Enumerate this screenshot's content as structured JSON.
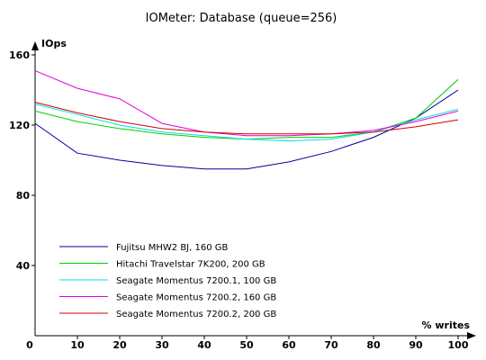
{
  "chart_data": {
    "type": "line",
    "title": "IOMeter: Database (queue=256)",
    "ylabel": "IOps",
    "xlabel": "% writes",
    "x": [
      0,
      10,
      20,
      30,
      40,
      50,
      60,
      70,
      80,
      90,
      100
    ],
    "xlim": [
      0,
      100
    ],
    "ylim": [
      0,
      160
    ],
    "xticks": [
      "0",
      "10",
      "20",
      "30",
      "40",
      "50",
      "60",
      "70",
      "80",
      "90",
      "100"
    ],
    "yticks": [
      "40",
      "80",
      "120",
      "160"
    ],
    "grid": false,
    "legend_position": "bottom-left",
    "series": [
      {
        "name": "Fujitsu MHW2 BJ, 160 GB",
        "color": "#0000a0",
        "values": [
          121,
          104,
          100,
          97,
          95,
          95,
          99,
          105,
          113,
          124,
          140
        ]
      },
      {
        "name": "Hitachi Travelstar 7K200, 200 GB",
        "color": "#00d000",
        "values": [
          128,
          122,
          118,
          115,
          113,
          112,
          113,
          113,
          116,
          124,
          146
        ]
      },
      {
        "name": "Seagate Momentus 7200.1, 100 GB",
        "color": "#00e0e0",
        "values": [
          132,
          126,
          120,
          116,
          114,
          112,
          111,
          112,
          116,
          123,
          129
        ]
      },
      {
        "name": "Seagate Momentus 7200.2, 160 GB",
        "color": "#e000e0",
        "values": [
          151,
          141,
          135,
          121,
          116,
          114,
          114,
          115,
          117,
          122,
          128
        ]
      },
      {
        "name": "Seagate Momentus 7200.2, 200 GB",
        "color": "#d00000",
        "values": [
          133,
          127,
          122,
          118,
          116,
          115,
          115,
          115,
          116,
          119,
          123
        ]
      }
    ]
  }
}
